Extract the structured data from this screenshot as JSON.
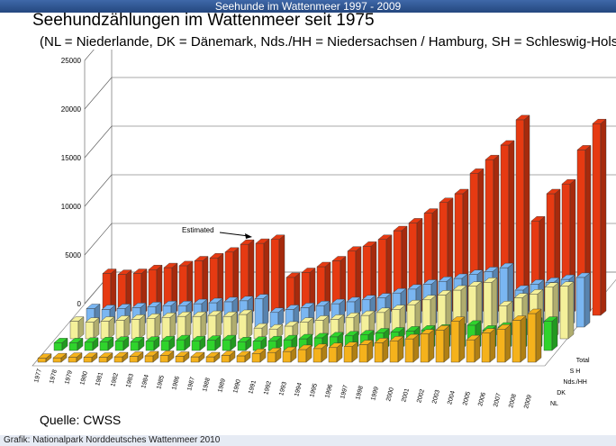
{
  "header": {
    "banner": "Seehunde im Wattenmeer 1997 - 2009"
  },
  "title": "Seehundzählungen im Wattenmeer seit 1975",
  "subtitle": "(NL = Niederlande, DK = Dänemark, Nds./HH = Niedersachsen / Hamburg, SH = Schleswig-Holstein",
  "source": "Quelle: CWSS",
  "footer": "Grafik: Nationalpark Norddeutsches Wattenmeer 2010",
  "annotation": "Estimated",
  "colors": {
    "NL": "#f5b21c",
    "DK": "#2fd42c",
    "Nds/HH": "#f4f09a",
    "SH": "#7ab6f2",
    "Total": "#e63a12"
  },
  "chart_data": {
    "type": "bar",
    "title": "Seehundzählungen im Wattenmeer seit 1975",
    "subtitle": "(NL = Niederlande, DK = Dänemark, Nds./HH = Niedersachsen / Hamburg, SH = Schleswig-Holstein",
    "ylim": [
      0,
      25000
    ],
    "yticks": [
      0,
      5000,
      10000,
      15000,
      20000,
      25000
    ],
    "grid": true,
    "legend_position": "right (depth axis)",
    "categories": [
      "1977",
      "1978",
      "1979",
      "1980",
      "1981",
      "1982",
      "1983",
      "1984",
      "1985",
      "1986",
      "1987",
      "1988",
      "1989",
      "1990",
      "1991",
      "1992",
      "1993",
      "1994",
      "1995",
      "1996",
      "1997",
      "1998",
      "1999",
      "2000",
      "2001",
      "2002",
      "2003",
      "2004",
      "2005",
      "2006",
      "2007",
      "2008",
      "2009"
    ],
    "series": [
      {
        "name": "NL",
        "values": [
          400,
          450,
          500,
          500,
          500,
          550,
          600,
          650,
          700,
          600,
          550,
          550,
          700,
          650,
          900,
          1000,
          1100,
          1300,
          1400,
          1500,
          1600,
          1800,
          2000,
          2200,
          2400,
          2900,
          3300,
          4200,
          2300,
          3000,
          3400,
          4300,
          5000
        ]
      },
      {
        "name": "DK",
        "values": [
          800,
          800,
          850,
          900,
          950,
          900,
          950,
          1000,
          1100,
          1000,
          1050,
          1100,
          900,
          950,
          1000,
          1100,
          1200,
          1300,
          1400,
          1500,
          1600,
          1800,
          1900,
          2000,
          2100,
          2200,
          2300,
          2600,
          2100,
          2400,
          2800,
          2900,
          3000
        ]
      },
      {
        "name": "Nds./HH",
        "values": [
          1800,
          1700,
          1800,
          1900,
          2000,
          2100,
          2200,
          2300,
          2300,
          2400,
          2300,
          2500,
          1100,
          1000,
          1300,
          1700,
          1900,
          2000,
          2200,
          2400,
          2700,
          3000,
          3500,
          4000,
          4500,
          5000,
          5400,
          5800,
          3400,
          4200,
          4600,
          5300,
          5400
        ]
      },
      {
        "name": "SH",
        "values": [
          1900,
          1800,
          1900,
          2000,
          2100,
          2200,
          2200,
          2400,
          2500,
          2600,
          2700,
          2900,
          1500,
          1800,
          2000,
          2200,
          2400,
          2600,
          2800,
          3000,
          3500,
          3900,
          4400,
          4700,
          5000,
          5400,
          5700,
          6100,
          3800,
          4400,
          4600,
          4900,
          5100
        ]
      },
      {
        "name": "Total",
        "values": [
          4300,
          4200,
          4300,
          4700,
          4900,
          5100,
          5600,
          5900,
          6500,
          7300,
          7400,
          7800,
          3900,
          4400,
          5000,
          5600,
          6600,
          7100,
          7800,
          8700,
          9500,
          10500,
          11600,
          12500,
          14600,
          16000,
          17500,
          20100,
          9700,
          12500,
          13500,
          17000,
          19700
        ]
      }
    ]
  }
}
